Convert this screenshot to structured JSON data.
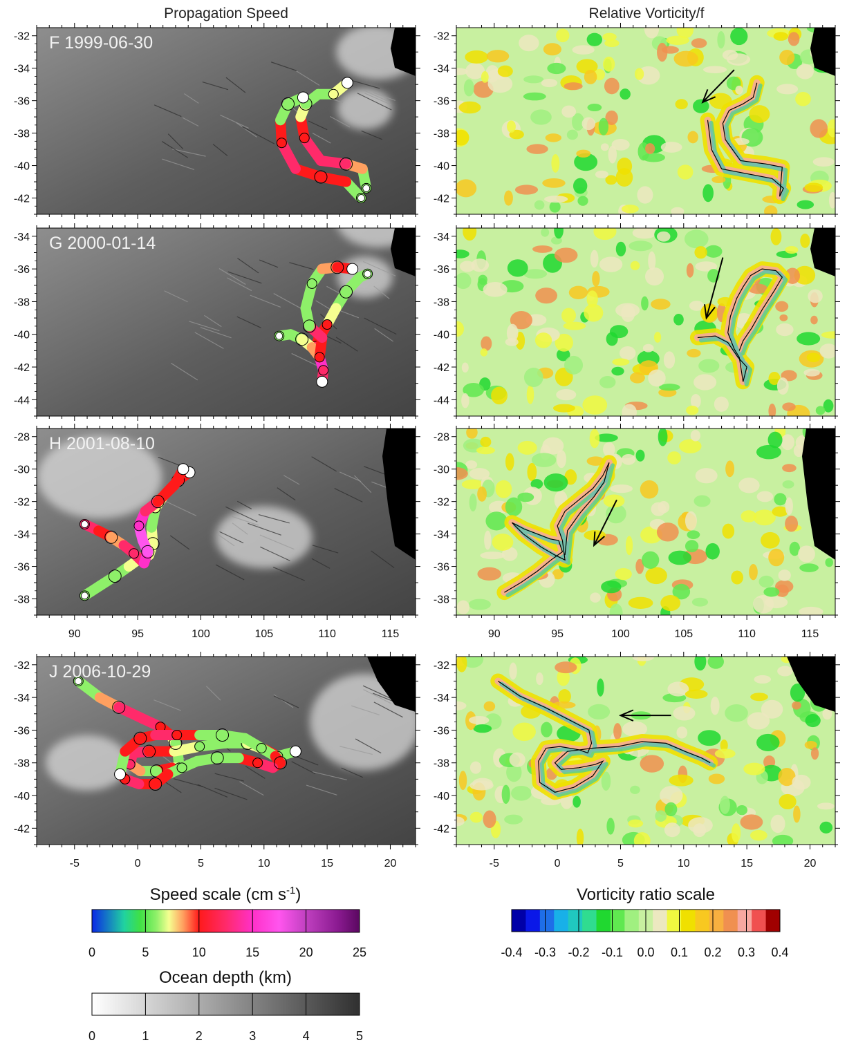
{
  "titles": {
    "left": "Propagation Speed",
    "right": "Relative Vorticity/f"
  },
  "chart_data": [
    {
      "type": "scatter",
      "panel": "F",
      "column": "speed",
      "label": "F 1999-06-30",
      "xlim": [
        87,
        117
      ],
      "ylim": [
        -43,
        -31.5
      ],
      "yticks": [
        -32,
        -34,
        -36,
        -38,
        -40,
        -42
      ],
      "xticks": [],
      "xticklabels": [],
      "track": [
        [
          113.1,
          -41.4
        ],
        [
          112.8,
          -40.2
        ],
        [
          111.5,
          -39.9
        ],
        [
          109.5,
          -39.7
        ],
        [
          108.2,
          -38.3
        ],
        [
          107.9,
          -37.0
        ],
        [
          108.3,
          -36.2
        ],
        [
          109.3,
          -35.6
        ],
        [
          110.5,
          -35.6
        ],
        [
          111.6,
          -34.9
        ]
      ]
    },
    {
      "type": "scatter",
      "panel": "F",
      "column": "speed",
      "label": "",
      "xlim": [
        87,
        117
      ],
      "ylim": [
        -43,
        -31.5
      ],
      "track": [
        [
          112.7,
          -42.0
        ],
        [
          111.5,
          -41.0
        ],
        [
          109.5,
          -40.7
        ],
        [
          107.5,
          -40.2
        ],
        [
          106.4,
          -38.6
        ],
        [
          106.3,
          -37.2
        ],
        [
          106.9,
          -36.2
        ],
        [
          108.1,
          -35.8
        ]
      ]
    },
    {
      "type": "heatmap",
      "panel": "F",
      "column": "vorticity",
      "xlim": [
        87,
        117
      ],
      "ylim": [
        -43,
        -31.5
      ],
      "yticks": [
        -32,
        -34,
        -36,
        -38,
        -40,
        -42
      ],
      "xticks": [],
      "xticklabels": [],
      "arrow": {
        "from": [
          109.0,
          -34.1
        ],
        "to": [
          106.5,
          -36.1
        ]
      },
      "track": [
        [
          106.9,
          -37.2
        ],
        [
          107.2,
          -39.0
        ],
        [
          108.0,
          -40.2
        ],
        [
          110.0,
          -40.5
        ],
        [
          112.0,
          -40.8
        ],
        [
          112.9,
          -41.4
        ],
        [
          112.6,
          -41.9
        ],
        [
          112.8,
          -40.1
        ],
        [
          111.5,
          -39.9
        ],
        [
          109.5,
          -39.7
        ],
        [
          108.3,
          -38.4
        ],
        [
          108.1,
          -37.4
        ],
        [
          108.6,
          -36.6
        ],
        [
          109.7,
          -36.2
        ],
        [
          110.5,
          -35.8
        ],
        [
          110.8,
          -34.9
        ]
      ]
    },
    {
      "type": "scatter",
      "panel": "G",
      "column": "speed",
      "label": "G 2000-01-14",
      "xlim": [
        87,
        117
      ],
      "ylim": [
        -45,
        -33.5
      ],
      "yticks": [
        -34,
        -36,
        -38,
        -40,
        -42,
        -44
      ],
      "xticks": [],
      "xticklabels": [],
      "track": [
        [
          113.2,
          -36.3
        ],
        [
          112.6,
          -36.5
        ],
        [
          111.5,
          -37.4
        ],
        [
          110.7,
          -38.4
        ],
        [
          110.0,
          -39.4
        ],
        [
          109.3,
          -40.3
        ],
        [
          109.1,
          -40.8
        ],
        [
          109.4,
          -41.4
        ],
        [
          109.7,
          -42.2
        ],
        [
          109.6,
          -42.9
        ]
      ]
    },
    {
      "type": "scatter",
      "panel": "G",
      "column": "speed",
      "label": "",
      "xlim": [
        87,
        117
      ],
      "ylim": [
        -45,
        -33.5
      ],
      "track": [
        [
          106.2,
          -40.1
        ],
        [
          107.1,
          -40.0
        ],
        [
          108.0,
          -40.3
        ],
        [
          108.8,
          -40.8
        ],
        [
          109.4,
          -41.4
        ],
        [
          109.6,
          -40.2
        ],
        [
          108.6,
          -39.5
        ],
        [
          108.3,
          -38.4
        ],
        [
          108.8,
          -36.9
        ],
        [
          109.6,
          -36.0
        ],
        [
          110.8,
          -35.9
        ],
        [
          112.0,
          -36.0
        ]
      ]
    },
    {
      "type": "heatmap",
      "panel": "G",
      "column": "vorticity",
      "xlim": [
        87,
        117
      ],
      "ylim": [
        -45,
        -33.5
      ],
      "yticks": [
        -34,
        -36,
        -38,
        -40,
        -42,
        -44
      ],
      "xticks": [],
      "xticklabels": [],
      "arrow": {
        "from": [
          108.1,
          -35.3
        ],
        "to": [
          106.8,
          -39.0
        ]
      },
      "track": [
        [
          106.1,
          -40.2
        ],
        [
          107.5,
          -40.1
        ],
        [
          108.5,
          -40.5
        ],
        [
          109.3,
          -41.4
        ],
        [
          110.0,
          -42.0
        ],
        [
          109.7,
          -42.9
        ],
        [
          109.4,
          -41.4
        ],
        [
          109.0,
          -40.9
        ],
        [
          108.5,
          -39.9
        ],
        [
          108.7,
          -38.9
        ],
        [
          109.2,
          -37.8
        ],
        [
          109.7,
          -37.1
        ],
        [
          110.3,
          -36.4
        ],
        [
          111.2,
          -36.0
        ],
        [
          112.3,
          -36.1
        ],
        [
          112.8,
          -36.5
        ],
        [
          112.2,
          -37.3
        ],
        [
          111.2,
          -38.5
        ],
        [
          110.4,
          -39.6
        ],
        [
          109.7,
          -40.4
        ],
        [
          109.4,
          -41.0
        ]
      ]
    },
    {
      "type": "scatter",
      "panel": "H",
      "column": "speed",
      "label": "H 2001-08-10",
      "xlim": [
        87,
        117
      ],
      "ylim": [
        -39,
        -27.5
      ],
      "yticks": [
        -28,
        -30,
        -32,
        -34,
        -36,
        -38
      ],
      "xticks": [
        90,
        95,
        100,
        105,
        110,
        115
      ],
      "xticklabels": [
        "90",
        "95",
        "100",
        "105",
        "110",
        "115"
      ],
      "track": [
        [
          90.8,
          -37.8
        ],
        [
          92.0,
          -37.2
        ],
        [
          93.2,
          -36.6
        ],
        [
          94.3,
          -36.0
        ],
        [
          95.2,
          -35.5
        ],
        [
          95.9,
          -35.3
        ],
        [
          96.2,
          -34.6
        ],
        [
          96.1,
          -33.6
        ],
        [
          96.4,
          -32.4
        ],
        [
          97.1,
          -31.6
        ],
        [
          98.2,
          -30.7
        ],
        [
          99.1,
          -30.2
        ]
      ]
    },
    {
      "type": "scatter",
      "panel": "H",
      "column": "speed",
      "label": "",
      "xlim": [
        87,
        117
      ],
      "ylim": [
        -39,
        -27.5
      ],
      "track": [
        [
          90.8,
          -33.4
        ],
        [
          91.9,
          -33.8
        ],
        [
          92.9,
          -34.2
        ],
        [
          93.9,
          -34.7
        ],
        [
          94.7,
          -35.2
        ],
        [
          95.5,
          -35.8
        ],
        [
          95.8,
          -35.1
        ],
        [
          95.4,
          -34.4
        ],
        [
          95.1,
          -33.5
        ],
        [
          95.6,
          -32.6
        ],
        [
          96.6,
          -32.0
        ],
        [
          97.9,
          -31.0
        ],
        [
          98.6,
          -30.0
        ]
      ]
    },
    {
      "type": "heatmap",
      "panel": "H",
      "column": "vorticity",
      "xlim": [
        87,
        117
      ],
      "ylim": [
        -39,
        -27.5
      ],
      "yticks": [
        -28,
        -30,
        -32,
        -34,
        -36,
        -38
      ],
      "xticks": [
        90,
        95,
        100,
        105,
        110,
        115
      ],
      "xticklabels": [
        "90",
        "95",
        "100",
        "105",
        "110",
        "115"
      ],
      "arrow": {
        "from": [
          99.7,
          -31.9
        ],
        "to": [
          97.9,
          -34.7
        ]
      },
      "track": [
        [
          90.8,
          -37.6
        ],
        [
          92.1,
          -37.0
        ],
        [
          93.4,
          -36.3
        ],
        [
          94.5,
          -35.6
        ],
        [
          95.4,
          -35.1
        ],
        [
          95.1,
          -34.4
        ],
        [
          94.4,
          -34.3
        ],
        [
          93.4,
          -34.0
        ],
        [
          92.4,
          -33.7
        ],
        [
          91.4,
          -33.3
        ],
        [
          92.3,
          -34.0
        ],
        [
          93.7,
          -34.8
        ],
        [
          94.8,
          -35.3
        ],
        [
          95.6,
          -35.6
        ],
        [
          95.4,
          -34.4
        ],
        [
          95.0,
          -33.5
        ],
        [
          95.6,
          -32.6
        ],
        [
          96.7,
          -31.9
        ],
        [
          97.8,
          -31.2
        ],
        [
          98.6,
          -30.4
        ],
        [
          99.1,
          -29.6
        ],
        [
          98.7,
          -30.8
        ],
        [
          97.9,
          -31.7
        ],
        [
          96.8,
          -32.7
        ],
        [
          95.8,
          -33.8
        ],
        [
          95.6,
          -35.3
        ]
      ]
    },
    {
      "type": "scatter",
      "panel": "J",
      "column": "speed",
      "label": "J 2006-10-29",
      "xlim": [
        -8,
        22
      ],
      "ylim": [
        -43,
        -31.5
      ],
      "yticks": [
        -32,
        -34,
        -36,
        -38,
        -40,
        -42
      ],
      "xticks": [
        -5,
        0,
        5,
        10,
        15,
        20
      ],
      "xticklabels": [
        "-5",
        "0",
        "5",
        "10",
        "15",
        "20"
      ],
      "track": [
        [
          -4.7,
          -33.0
        ],
        [
          -3.0,
          -34.0
        ],
        [
          -1.5,
          -34.6
        ],
        [
          0.4,
          -35.3
        ],
        [
          1.8,
          -35.8
        ],
        [
          2.6,
          -36.3
        ],
        [
          3.0,
          -36.8
        ],
        [
          3.2,
          -37.6
        ],
        [
          3.3,
          -38.3
        ],
        [
          2.7,
          -38.3
        ],
        [
          1.5,
          -38.5
        ],
        [
          0.2,
          -38.5
        ],
        [
          -0.6,
          -38.1
        ],
        [
          -0.4,
          -37.4
        ],
        [
          0.9,
          -37.3
        ],
        [
          2.9,
          -37.3
        ],
        [
          4.9,
          -37.0
        ],
        [
          6.9,
          -36.8
        ],
        [
          8.7,
          -36.8
        ],
        [
          10.1,
          -37.2
        ],
        [
          11.1,
          -37.6
        ],
        [
          12.5,
          -37.3
        ]
      ]
    },
    {
      "type": "scatter",
      "panel": "J",
      "column": "speed",
      "label": "",
      "xlim": [
        -8,
        22
      ],
      "ylim": [
        -43,
        -31.5
      ],
      "track": [
        [
          -1.4,
          -38.7
        ],
        [
          -1.0,
          -37.3
        ],
        [
          0.2,
          -36.5
        ],
        [
          1.4,
          -36.3
        ],
        [
          3.1,
          -36.3
        ],
        [
          4.9,
          -36.3
        ],
        [
          6.7,
          -36.3
        ],
        [
          8.5,
          -36.5
        ],
        [
          9.8,
          -37.1
        ],
        [
          10.9,
          -37.6
        ],
        [
          11.3,
          -38.0
        ],
        [
          10.7,
          -38.3
        ],
        [
          9.5,
          -38.0
        ],
        [
          8.0,
          -37.7
        ],
        [
          6.3,
          -37.7
        ],
        [
          4.7,
          -37.9
        ],
        [
          3.5,
          -38.3
        ],
        [
          2.4,
          -38.7
        ],
        [
          1.4,
          -39.3
        ],
        [
          0.1,
          -39.3
        ],
        [
          -1.0,
          -39.0
        ],
        [
          -1.4,
          -38.7
        ]
      ]
    },
    {
      "type": "heatmap",
      "panel": "J",
      "column": "vorticity",
      "xlim": [
        -8,
        22
      ],
      "ylim": [
        -43,
        -31.5
      ],
      "yticks": [
        -32,
        -34,
        -36,
        -38,
        -40,
        -42
      ],
      "xticks": [
        -5,
        0,
        5,
        10,
        15,
        20
      ],
      "xticklabels": [
        "-5",
        "0",
        "5",
        "10",
        "15",
        "20"
      ],
      "arrow": {
        "from": [
          9.0,
          -35.1
        ],
        "to": [
          5.0,
          -35.1
        ]
      },
      "track": [
        [
          -4.7,
          -33.0
        ],
        [
          -3.0,
          -33.9
        ],
        [
          -1.0,
          -34.6
        ],
        [
          1.0,
          -35.4
        ],
        [
          2.5,
          -36.0
        ],
        [
          2.7,
          -36.8
        ],
        [
          2.4,
          -37.4
        ],
        [
          1.7,
          -37.2
        ],
        [
          0.2,
          -37.0
        ],
        [
          -0.9,
          -37.1
        ],
        [
          -1.5,
          -37.9
        ],
        [
          -1.4,
          -39.2
        ],
        [
          -0.2,
          -39.8
        ],
        [
          1.3,
          -39.5
        ],
        [
          2.8,
          -38.8
        ],
        [
          3.6,
          -37.9
        ],
        [
          3.0,
          -38.1
        ],
        [
          1.7,
          -38.3
        ],
        [
          0.3,
          -38.4
        ],
        [
          -0.2,
          -38.0
        ],
        [
          0.8,
          -37.3
        ],
        [
          2.8,
          -37.1
        ],
        [
          4.8,
          -37.0
        ],
        [
          6.7,
          -36.7
        ],
        [
          8.6,
          -36.8
        ],
        [
          10.1,
          -37.3
        ],
        [
          11.4,
          -37.7
        ],
        [
          12.1,
          -38.0
        ]
      ]
    }
  ],
  "speed_scale": {
    "title_main": "Speed scale (cm s",
    "title_sup": "-1",
    "title_end": ")",
    "ticks": [
      "0",
      "5",
      "10",
      "15",
      "20",
      "25"
    ],
    "range": [
      0,
      25
    ],
    "stops": [
      {
        "v": 0,
        "c": "#0a28e6"
      },
      {
        "v": 3,
        "c": "#20d2a0"
      },
      {
        "v": 4.5,
        "c": "#3fe045"
      },
      {
        "v": 6,
        "c": "#8ef069"
      },
      {
        "v": 7.2,
        "c": "#f5ff90"
      },
      {
        "v": 8.5,
        "c": "#ffa060"
      },
      {
        "v": 10,
        "c": "#ff1a1a"
      },
      {
        "v": 12.5,
        "c": "#ff2a6a"
      },
      {
        "v": 15,
        "c": "#ff30c8"
      },
      {
        "v": 17.5,
        "c": "#ff55ee"
      },
      {
        "v": 20,
        "c": "#c040c0"
      },
      {
        "v": 23,
        "c": "#8a1a90"
      },
      {
        "v": 25,
        "c": "#5a0860"
      }
    ]
  },
  "depth_scale": {
    "title": "Ocean depth (km)",
    "ticks": [
      "0",
      "1",
      "2",
      "3",
      "4",
      "5"
    ],
    "range": [
      0,
      5
    ],
    "color_shallow": "#ffffff",
    "color_deep": "#303030"
  },
  "vorticity_scale": {
    "title": "Vorticity ratio scale",
    "ticks": [
      "-0.4",
      "-0.3",
      "-0.2",
      "-0.1",
      "0.0",
      "0.1",
      "0.2",
      "0.3",
      "0.4"
    ],
    "range": [
      -0.4,
      0.4
    ],
    "colors": [
      "#0000a8",
      "#0a18e8",
      "#1e6ee8",
      "#18b0e8",
      "#20c8c0",
      "#30dc90",
      "#20d830",
      "#60e850",
      "#a0f080",
      "#c8f0a0",
      "#ece8c0",
      "#f0f840",
      "#f0e000",
      "#f8c820",
      "#f8b040",
      "#f09050",
      "#f8a8a0",
      "#f05050",
      "#a00000"
    ]
  },
  "land_color": "#000000",
  "track_line_color": "#000000"
}
